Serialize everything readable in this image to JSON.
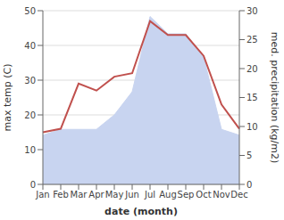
{
  "chart_data": {
    "type": "line",
    "xlabel": "date (month)",
    "ylabel": "max temp (C)",
    "y2label": "med. precipitation (kg/m2)",
    "categories": [
      "Jan",
      "Feb",
      "Mar",
      "Apr",
      "May",
      "Jun",
      "Jul",
      "Aug",
      "Sep",
      "Oct",
      "Nov",
      "Dec"
    ],
    "series": [
      {
        "type": "area",
        "axis": "y2",
        "color": "#c8d4f0",
        "values": [
          8.5,
          9.5,
          9.5,
          9.5,
          12,
          16,
          29,
          26,
          26,
          22,
          9.5,
          8.5
        ]
      },
      {
        "type": "line",
        "color": "#c0504d",
        "values": [
          15,
          16,
          29,
          27,
          31,
          32,
          47,
          43,
          43,
          37,
          23,
          16
        ]
      }
    ],
    "ylim": [
      0,
      50
    ],
    "yticks": [
      0,
      10,
      20,
      30,
      40,
      50
    ],
    "y2lim": [
      0,
      30
    ],
    "y2ticks": [
      0,
      5,
      10,
      15,
      20,
      25,
      30
    ],
    "grid": true
  }
}
